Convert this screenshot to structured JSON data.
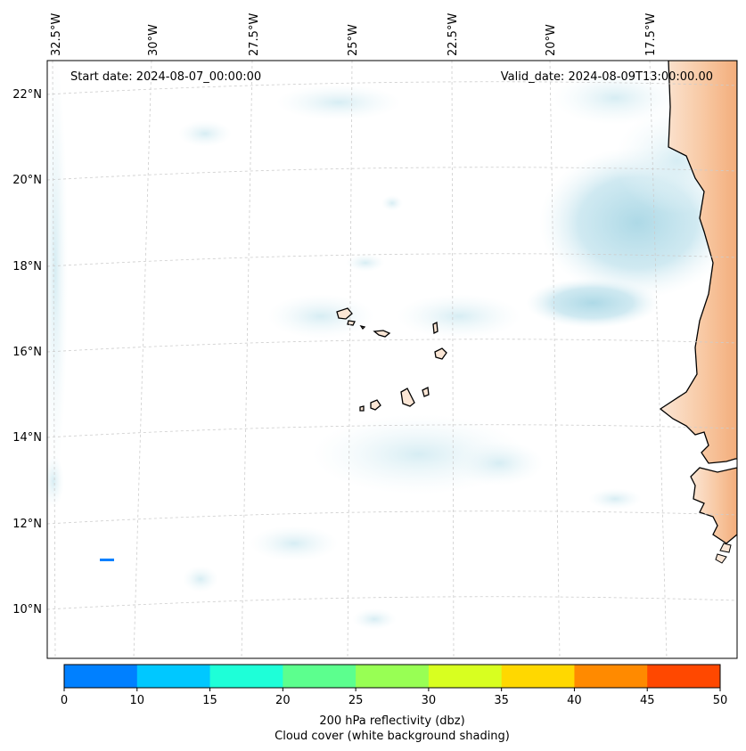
{
  "map": {
    "start_date": "Start date: 2024-08-07_00:00:00",
    "valid_date": "Valid_date: 2024-08-09T13:00:00.00",
    "lon_labels": [
      "32.5°W",
      "30°W",
      "27.5°W",
      "25°W",
      "22.5°W",
      "20°W",
      "17.5°W"
    ],
    "lat_labels": [
      "22°N",
      "20°N",
      "18°N",
      "16°N",
      "14°N",
      "12°N",
      "10°N"
    ],
    "colors": {
      "ocean": "#ffffff",
      "cloud_light": "#e3f2f8",
      "cloud_dense": "#b2dbe7",
      "land_light": "#fbe3cf",
      "land_warm": "#f5b585",
      "coast": "#000000",
      "grid": "#cccccc"
    }
  },
  "colorbar": {
    "ticks": [
      "0",
      "10",
      "15",
      "20",
      "25",
      "30",
      "35",
      "40",
      "45",
      "50"
    ],
    "colors": [
      "#0080ff",
      "#00c8ff",
      "#1effd8",
      "#5cff8e",
      "#98ff54",
      "#d8ff20",
      "#ffd800",
      "#ff8a00",
      "#ff4800"
    ],
    "label_line1": "200 hPa reflectivity (dbz)",
    "label_line2": "Cloud cover (white background shading)"
  }
}
